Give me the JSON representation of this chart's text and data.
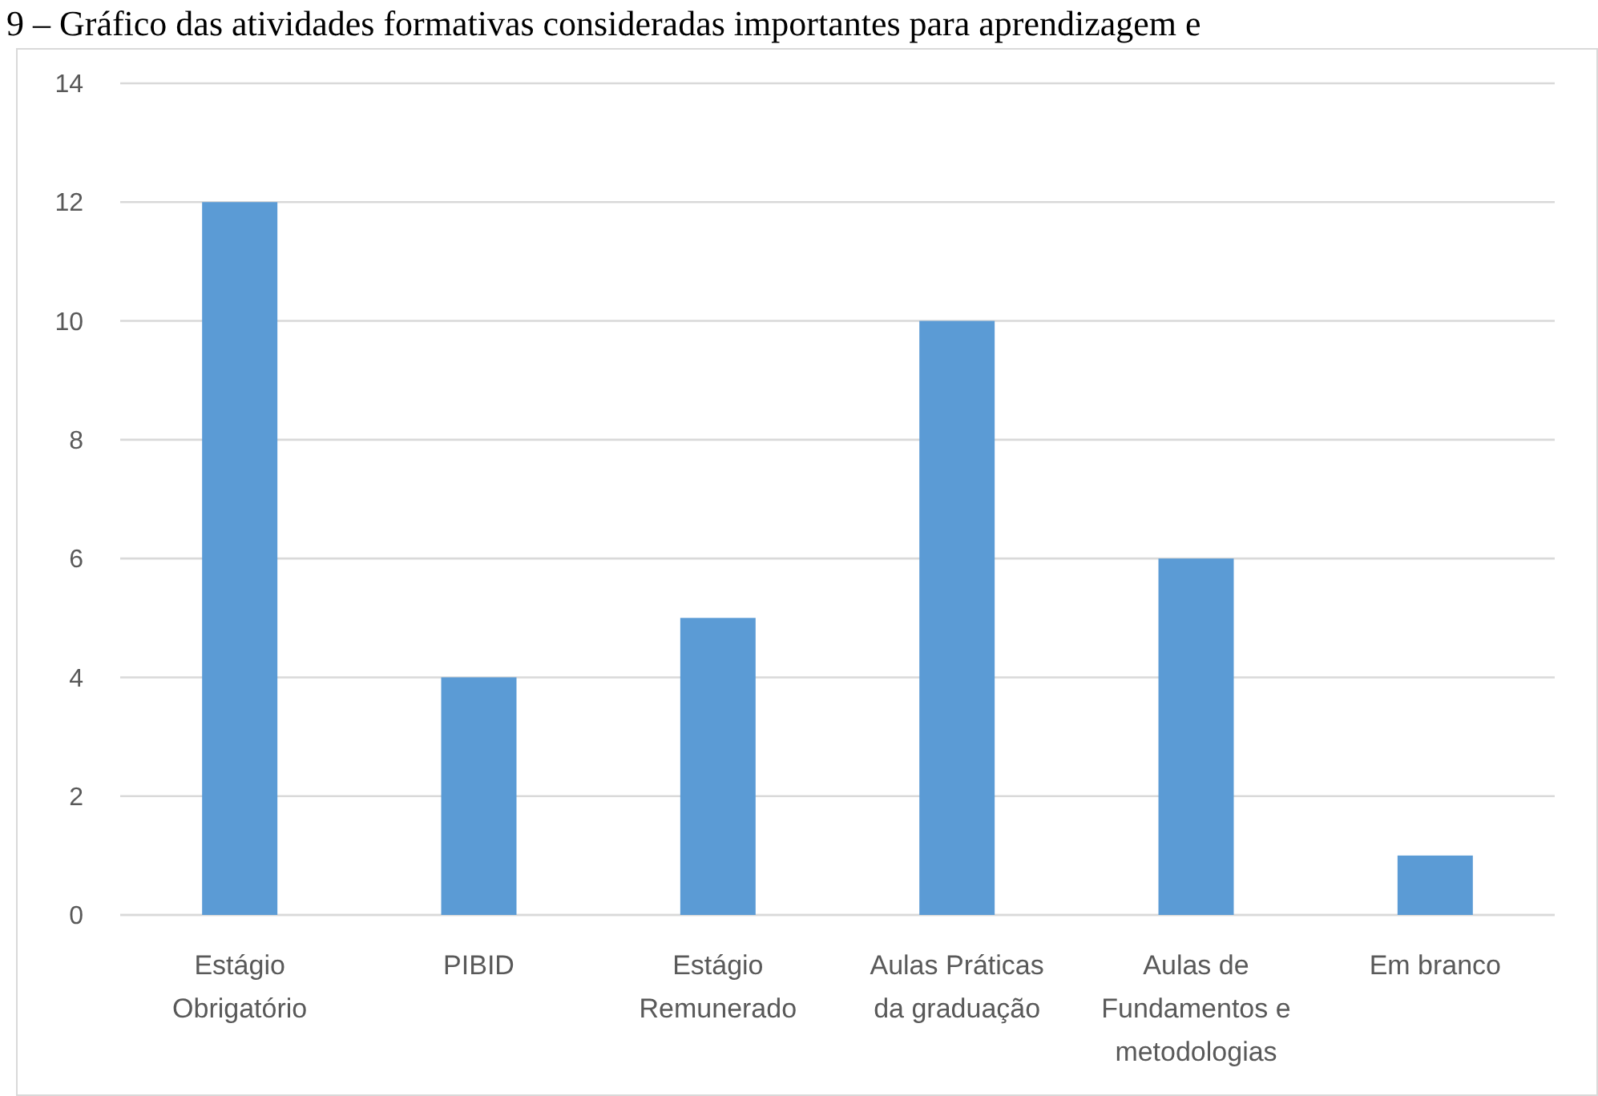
{
  "chart_data": {
    "type": "bar",
    "title": "9 – Gráfico das atividades formativas consideradas importantes para aprendizagem e",
    "categories": [
      "Estágio Obrigatório",
      "PIBID",
      "Estágio Remunerado",
      "Aulas Práticas da graduação",
      "Aulas de Fundamentos e metodologias",
      "Em branco"
    ],
    "values": [
      12,
      4,
      5,
      10,
      6,
      1
    ],
    "color": "#5b9bd5",
    "ylim": [
      0,
      14
    ],
    "yticks": [
      0,
      2,
      4,
      6,
      8,
      10,
      12,
      14
    ],
    "grid": "y"
  }
}
